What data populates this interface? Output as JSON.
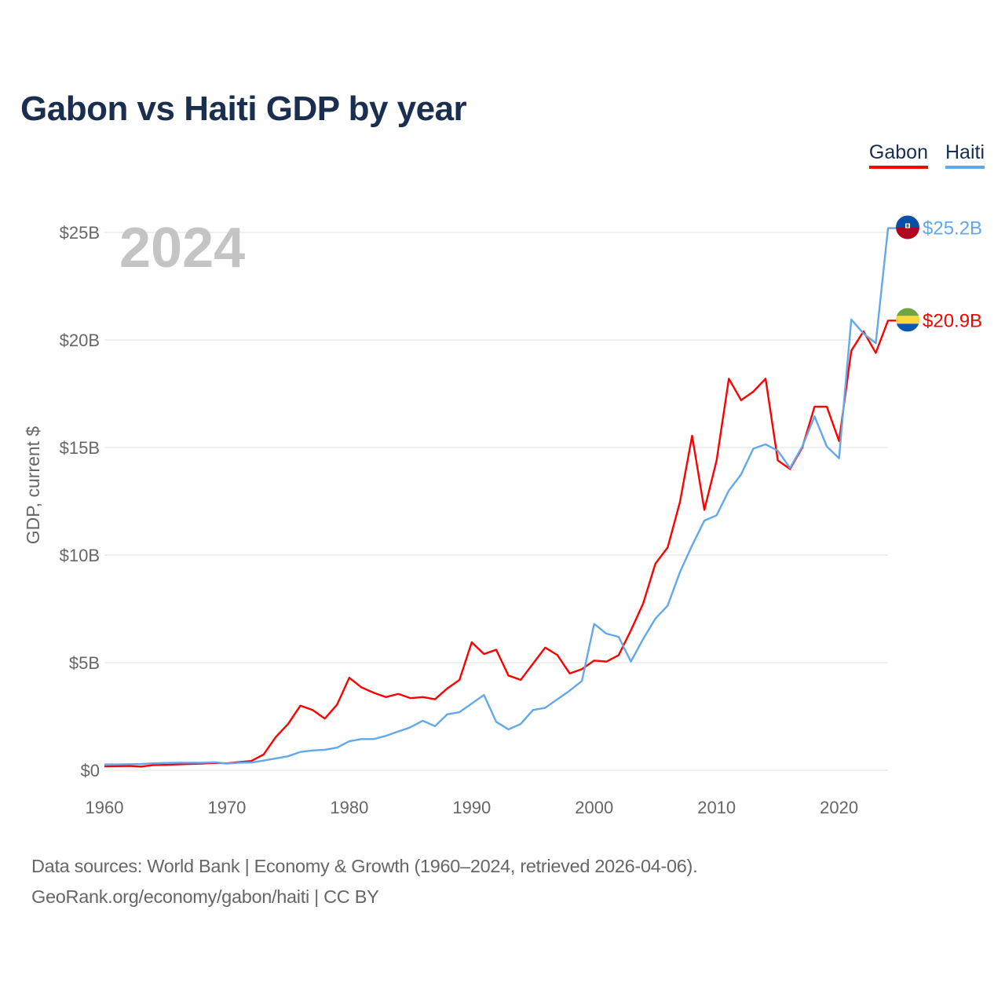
{
  "title": "Gabon vs Haiti GDP by year",
  "footer": {
    "line1": "Data sources: World Bank | Economy & Growth (1960–2024, retrieved 2026-04-06).",
    "line2": "GeoRank.org/economy/gabon/haiti | CC BY"
  },
  "chart_data": {
    "type": "line",
    "title": "Gabon vs Haiti GDP by year",
    "xlabel": "",
    "ylabel": "GDP, current $",
    "year_label": "2024",
    "xlim": [
      1960,
      2024
    ],
    "ylim": [
      0,
      25
    ],
    "grid": true,
    "legend_placement": "top-right",
    "x_ticks": [
      1960,
      1970,
      1980,
      1990,
      2000,
      2010,
      2020
    ],
    "x_tick_labels": [
      "1960",
      "1970",
      "1980",
      "1990",
      "2000",
      "2010",
      "2020"
    ],
    "y_ticks": [
      0,
      5,
      10,
      15,
      20,
      25
    ],
    "y_tick_labels": [
      "$0",
      "$5B",
      "$10B",
      "$15B",
      "$20B",
      "$25B"
    ],
    "x_start": 1960,
    "series": [
      {
        "name": "Gabon",
        "color": "#ff0000",
        "end_label": "$20.9B",
        "flag": "gabon-flag",
        "values": [
          0.18,
          0.19,
          0.2,
          0.17,
          0.24,
          0.25,
          0.27,
          0.29,
          0.31,
          0.34,
          0.32,
          0.38,
          0.43,
          0.73,
          1.55,
          2.15,
          3.0,
          2.8,
          2.4,
          3.05,
          4.3,
          3.85,
          3.6,
          3.4,
          3.55,
          3.35,
          3.4,
          3.3,
          3.8,
          4.2,
          5.95,
          5.4,
          5.6,
          4.4,
          4.2,
          4.95,
          5.7,
          5.35,
          4.5,
          4.7,
          5.1,
          5.05,
          5.35,
          6.5,
          7.75,
          9.6,
          10.35,
          12.45,
          15.55,
          12.1,
          14.4,
          18.2,
          17.2,
          17.6,
          18.2,
          14.4,
          14.0,
          15.0,
          16.9,
          16.9,
          15.3,
          19.5,
          20.4,
          19.4,
          20.9
        ]
      },
      {
        "name": "Haiti",
        "color": "#62a8ea",
        "end_label": "$25.2B",
        "flag": "haiti-flag",
        "values": [
          0.27,
          0.27,
          0.28,
          0.29,
          0.32,
          0.34,
          0.35,
          0.35,
          0.35,
          0.37,
          0.31,
          0.35,
          0.36,
          0.45,
          0.55,
          0.65,
          0.85,
          0.92,
          0.95,
          1.05,
          1.35,
          1.45,
          1.45,
          1.6,
          1.8,
          2.0,
          2.3,
          2.05,
          2.6,
          2.7,
          3.1,
          3.5,
          2.25,
          1.9,
          2.15,
          2.8,
          2.9,
          3.3,
          3.7,
          4.15,
          6.8,
          6.35,
          6.2,
          5.05,
          6.1,
          7.05,
          7.65,
          9.2,
          10.45,
          11.6,
          11.85,
          13.0,
          13.75,
          14.95,
          15.15,
          14.85,
          14.05,
          15.05,
          16.45,
          15.05,
          14.5,
          20.95,
          20.3,
          19.85,
          25.2
        ]
      }
    ]
  }
}
